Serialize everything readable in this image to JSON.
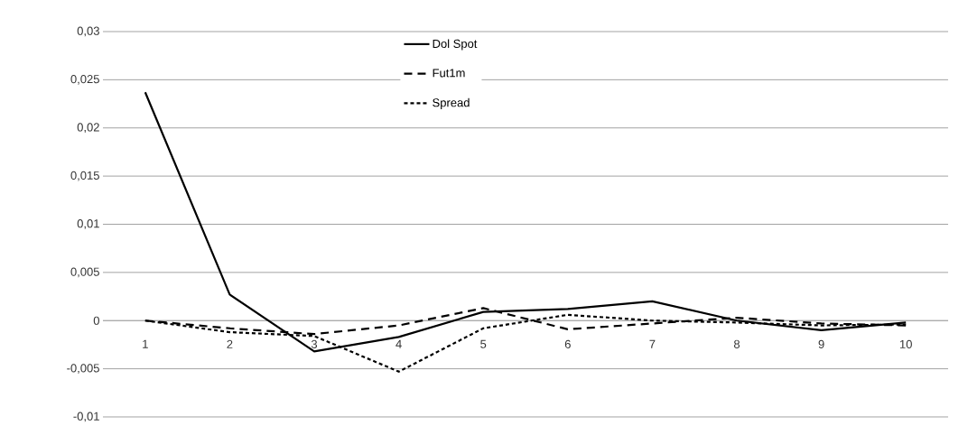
{
  "chart_data": {
    "type": "line",
    "categories": [
      "1",
      "2",
      "3",
      "4",
      "5",
      "6",
      "7",
      "8",
      "9",
      "10"
    ],
    "series": [
      {
        "name": "Dol Spot",
        "color": "#000000",
        "line_style": "solid",
        "values": [
          0.0237,
          0.0027,
          -0.0032,
          -0.0017,
          0.0009,
          0.0012,
          0.002,
          0.0,
          -0.001,
          -0.0002
        ]
      },
      {
        "name": "Fut1m",
        "color": "#000000",
        "line_style": "dashed",
        "values": [
          0.0,
          -0.0008,
          -0.0014,
          -0.0005,
          0.0013,
          -0.0009,
          -0.0003,
          0.0003,
          -0.0003,
          -0.0005
        ]
      },
      {
        "name": "Spread",
        "color": "#000000",
        "line_style": "dotted",
        "values": [
          0.0,
          -0.0012,
          -0.0016,
          -0.0053,
          -0.0008,
          0.0006,
          0.0,
          -0.0002,
          -0.0005,
          -0.0004
        ]
      }
    ],
    "ylim": [
      -0.01,
      0.03
    ],
    "yticks": [
      {
        "value": -0.01,
        "label": "-0,01"
      },
      {
        "value": -0.005,
        "label": "-0,005"
      },
      {
        "value": 0,
        "label": "0"
      },
      {
        "value": 0.005,
        "label": "0,005"
      },
      {
        "value": 0.01,
        "label": "0,01"
      },
      {
        "value": 0.015,
        "label": "0,015"
      },
      {
        "value": 0.02,
        "label": "0,02"
      },
      {
        "value": 0.025,
        "label": "0,025"
      },
      {
        "value": 0.03,
        "label": "0,03"
      }
    ],
    "grid": "y",
    "legend": "top",
    "marker": "none"
  }
}
